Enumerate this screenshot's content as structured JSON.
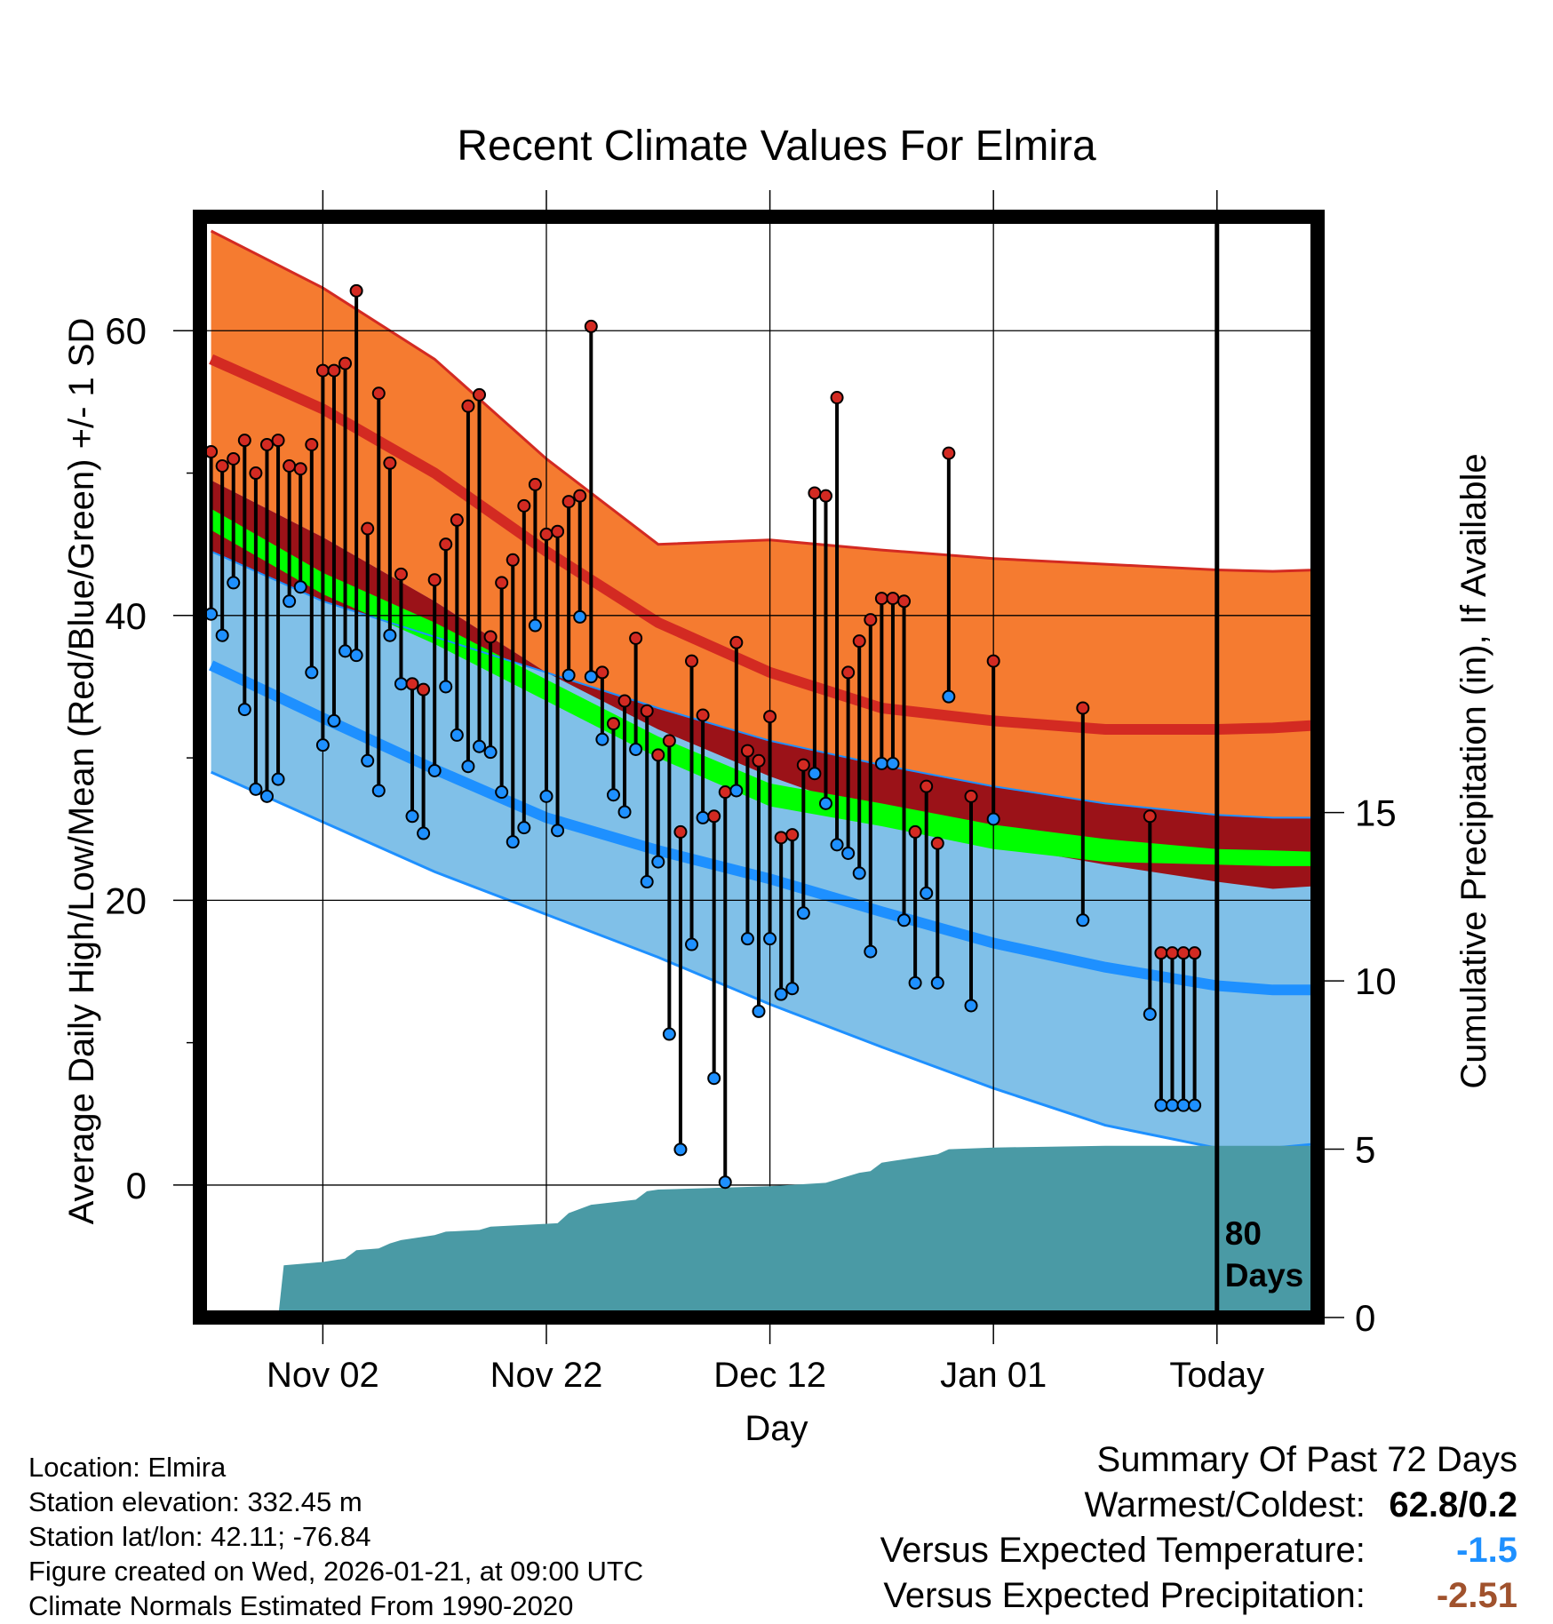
{
  "chart_data": {
    "type": "line",
    "title": "Recent Climate Values For Elmira",
    "xlabel": "Day",
    "ylabel": "Average Daily High/Low/Mean (Red/Blue/Green) +/- 1 SD",
    "y2label": "Cumulative Precipitation (in), If Available",
    "xlim": [
      -11,
      89
    ],
    "ylim": [
      -9.3,
      68
    ],
    "y2lim": [
      0,
      32.7
    ],
    "x_ticks": [
      {
        "x": 0,
        "label": "Nov 02"
      },
      {
        "x": 20,
        "label": "Nov 22"
      },
      {
        "x": 40,
        "label": "Dec 12"
      },
      {
        "x": 60,
        "label": "Jan 01"
      },
      {
        "x": 80,
        "label": "Today"
      }
    ],
    "y_ticks": [
      0,
      20,
      40,
      60
    ],
    "y_minor_ticks": [
      10,
      30,
      50
    ],
    "y2_ticks": [
      0,
      5,
      10,
      15
    ],
    "today_x": 80,
    "today_label": [
      "80",
      "Days"
    ],
    "normals": {
      "x": [
        -10,
        0,
        10,
        20,
        30,
        40,
        50,
        60,
        70,
        80,
        85,
        89
      ],
      "high_plus_sd": [
        67.0,
        63.0,
        58.0,
        51.0,
        45.0,
        45.3,
        44.6,
        44.0,
        43.6,
        43.2,
        43.1,
        43.2
      ],
      "high_mean": [
        58.0,
        54.5,
        50.0,
        44.5,
        39.5,
        36.0,
        33.5,
        32.6,
        32.0,
        32.0,
        32.1,
        32.3
      ],
      "high_minus_sd": [
        49.5,
        45.5,
        41.0,
        36.0,
        32.0,
        28.7,
        25.9,
        23.9,
        22.5,
        21.3,
        20.8,
        21.0
      ],
      "mean_upper": [
        47.5,
        43.0,
        39.5,
        35.5,
        31.5,
        28.2,
        26.8,
        25.3,
        24.3,
        23.6,
        23.5,
        23.4
      ],
      "mean_lower": [
        46.0,
        41.5,
        38.0,
        34.0,
        30.0,
        26.6,
        25.2,
        23.6,
        22.7,
        22.5,
        22.4,
        22.4
      ],
      "low_plus_sd": [
        44.5,
        41.0,
        38.5,
        36.0,
        33.5,
        31.2,
        29.5,
        28.0,
        26.8,
        26.0,
        25.8,
        25.8
      ],
      "low_mean": [
        36.5,
        32.8,
        29.2,
        25.8,
        23.5,
        21.5,
        19.2,
        17.0,
        15.3,
        14.0,
        13.7,
        13.7
      ],
      "low_minus_sd": [
        29.0,
        25.5,
        22.0,
        19.0,
        16.0,
        12.7,
        9.7,
        6.8,
        4.2,
        2.6,
        2.6,
        2.9
      ]
    },
    "daily": {
      "x": [
        -10,
        -9,
        -8,
        -7,
        -6,
        -5,
        -4,
        -3,
        -2,
        -1,
        0,
        1,
        2,
        3,
        4,
        5,
        6,
        7,
        8,
        9,
        10,
        11,
        12,
        13,
        14,
        15,
        16,
        17,
        18,
        19,
        20,
        21,
        22,
        23,
        24,
        25,
        26,
        27,
        28,
        29,
        30,
        31,
        32,
        33,
        34,
        35,
        36,
        37,
        38,
        39,
        40,
        41,
        42,
        43,
        44,
        45,
        46,
        47,
        48,
        49,
        50,
        51,
        52,
        53,
        54,
        55,
        56,
        58,
        60,
        68,
        74,
        75,
        76,
        77,
        78
      ],
      "high": [
        51.5,
        50.5,
        51.0,
        52.3,
        50.0,
        52.0,
        52.3,
        50.5,
        50.3,
        52.0,
        57.2,
        57.2,
        57.7,
        62.8,
        46.1,
        55.6,
        50.7,
        42.9,
        35.2,
        34.8,
        42.5,
        45.0,
        46.7,
        54.7,
        55.5,
        38.5,
        42.3,
        43.9,
        47.7,
        49.2,
        45.7,
        45.9,
        48.0,
        48.4,
        60.3,
        36.0,
        32.4,
        34.0,
        38.4,
        33.3,
        30.2,
        31.2,
        24.8,
        36.8,
        33.0,
        25.9,
        27.6,
        38.1,
        30.5,
        29.8,
        32.9,
        24.4,
        24.6,
        29.5,
        48.6,
        48.4,
        55.3,
        36.0,
        38.2,
        39.7,
        41.2,
        41.2,
        41.0,
        24.8,
        28.0,
        24.0,
        51.4,
        27.3,
        36.8,
        33.5,
        25.9,
        16.3,
        16.3,
        16.3,
        16.3
      ],
      "low": [
        40.1,
        38.6,
        42.3,
        33.4,
        27.8,
        27.3,
        28.5,
        41.0,
        42.0,
        36.0,
        30.9,
        32.6,
        37.5,
        37.2,
        29.8,
        27.7,
        38.6,
        35.2,
        25.9,
        24.7,
        29.1,
        35.0,
        31.6,
        29.4,
        30.8,
        30.4,
        27.6,
        24.1,
        25.1,
        39.3,
        27.3,
        24.9,
        35.8,
        39.9,
        35.7,
        31.3,
        27.4,
        26.2,
        30.6,
        21.3,
        22.7,
        10.6,
        2.5,
        16.9,
        25.8,
        7.5,
        0.2,
        27.7,
        17.3,
        12.2,
        17.3,
        13.4,
        13.8,
        19.1,
        28.9,
        26.8,
        23.9,
        23.3,
        21.9,
        16.4,
        29.6,
        29.6,
        18.6,
        14.2,
        20.5,
        14.2,
        34.3,
        12.6,
        25.7,
        18.6,
        12.0,
        5.6,
        5.6,
        5.6,
        5.6
      ],
      "missing_note": "no observations for days 57, 59, 61-67, 69-73, 79"
    },
    "precip_cumulative": {
      "x": [
        -10,
        -4,
        -3.5,
        0,
        2,
        3,
        5,
        6,
        7,
        10,
        11,
        14,
        15,
        21,
        22,
        24,
        28,
        29,
        30,
        40,
        45,
        48,
        49,
        50,
        51,
        55,
        56,
        60,
        70,
        80,
        89
      ],
      "values": [
        0,
        0,
        1.55,
        1.65,
        1.75,
        2.0,
        2.05,
        2.2,
        2.3,
        2.45,
        2.55,
        2.6,
        2.7,
        2.8,
        3.1,
        3.35,
        3.5,
        3.75,
        3.8,
        3.9,
        4.0,
        4.3,
        4.35,
        4.6,
        4.65,
        4.85,
        5.0,
        5.05,
        5.1,
        5.1,
        5.1
      ]
    },
    "colors": {
      "high_band": "#f57b30",
      "high_mean_line": "#d32a22",
      "high_band_edge": "#d32a22",
      "mean_overlap_band": "#9b1218",
      "mean_line": "#00ff00",
      "low_band": "#80c0e8",
      "low_mean_line": "#1e90ff",
      "low_band_edge": "#1e90ff",
      "precip_fill": "#4a9aa5",
      "high_marker": "#d32a22",
      "low_marker": "#1e90ff"
    }
  },
  "info": {
    "location": "Location: Elmira",
    "elevation": "Station elevation: 332.45 m",
    "latlon": "Station lat/lon: 42.11; -76.84",
    "created": "Figure created on Wed, 2026-01-21, at 09:00 UTC",
    "normals": "Climate Normals Estimated From 1990-2020"
  },
  "summary": {
    "title": "Summary Of Past 72 Days",
    "warmest_label": "Warmest/Coldest:",
    "warmest_value": "62.8/0.2",
    "temp_label": "Versus Expected Temperature:",
    "temp_value": "-1.5",
    "temp_color": "#1e90ff",
    "precip_label": "Versus Expected Precipitation:",
    "precip_value": "-2.51",
    "precip_color": "#a0522d"
  }
}
